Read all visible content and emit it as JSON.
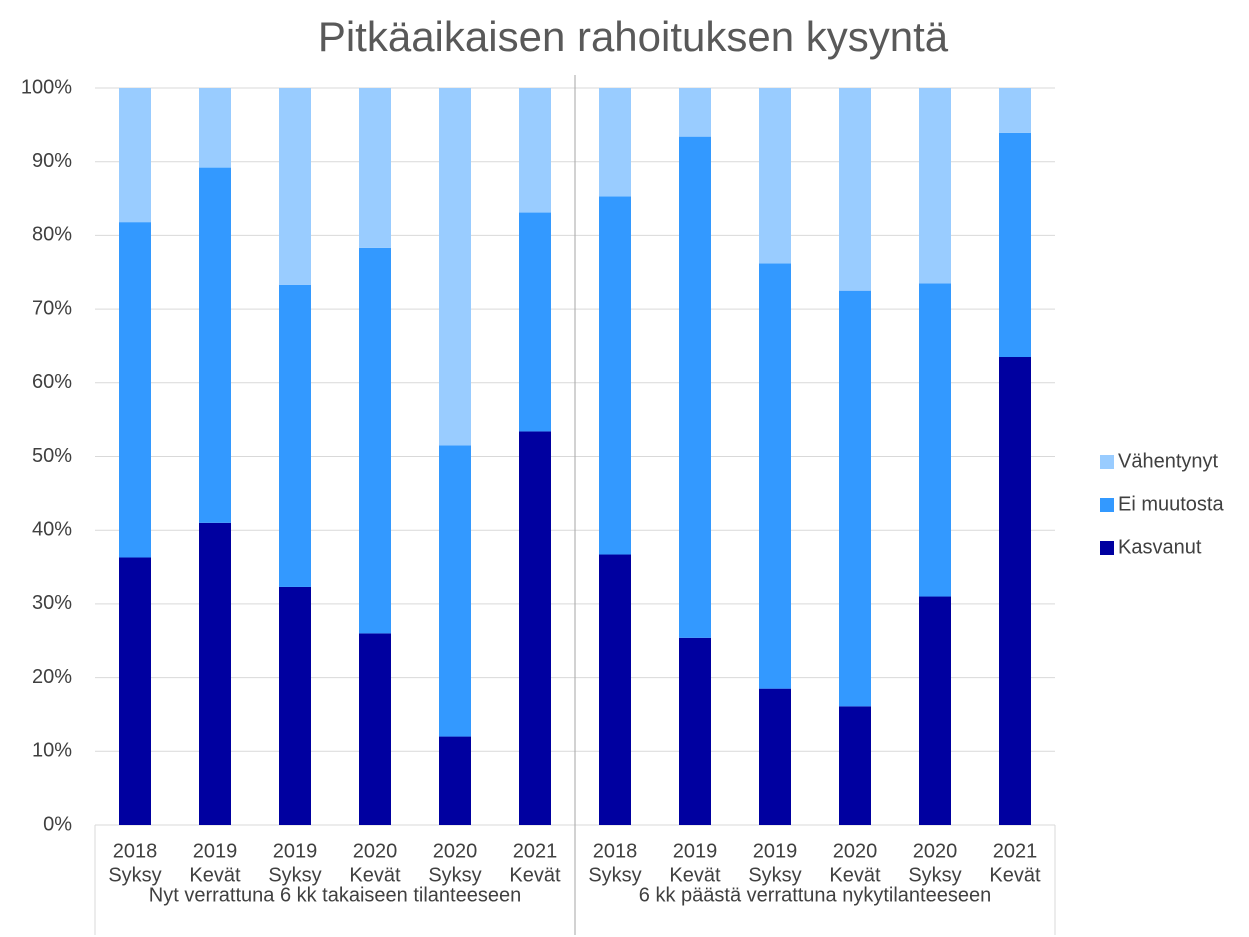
{
  "chart_data": {
    "type": "stacked_bar",
    "title": "Pitkäaikaisen rahoituksen kysyntä",
    "categories": [
      [
        "2018",
        "Syksy"
      ],
      [
        "2019",
        "Kevät"
      ],
      [
        "2019",
        "Syksy"
      ],
      [
        "2020",
        "Kevät"
      ],
      [
        "2020",
        "Syksy"
      ],
      [
        "2021",
        "Kevät"
      ],
      [
        "2018",
        "Syksy"
      ],
      [
        "2019",
        "Kevät"
      ],
      [
        "2019",
        "Syksy"
      ],
      [
        "2020",
        "Kevät"
      ],
      [
        "2020",
        "Syksy"
      ],
      [
        "2021",
        "Kevät"
      ]
    ],
    "groups": [
      "Nyt verrattuna 6 kk takaiseen tilanteeseen",
      "6 kk päästä verrattuna nykytilanteeseen"
    ],
    "series": [
      {
        "name": "Kasvanut",
        "color": "#0000a0",
        "values": [
          36.3,
          41.0,
          32.3,
          26.0,
          12.0,
          53.4,
          36.7,
          25.4,
          18.5,
          16.1,
          31.0,
          63.5
        ]
      },
      {
        "name": "Ei muutosta",
        "color": "#3399ff",
        "values": [
          45.5,
          48.2,
          41.0,
          52.3,
          39.5,
          29.7,
          48.6,
          68.0,
          57.7,
          56.4,
          42.5,
          30.4
        ]
      },
      {
        "name": "Vähentynyt",
        "color": "#99ccff",
        "values": [
          18.2,
          10.8,
          26.7,
          21.7,
          48.5,
          16.9,
          14.7,
          6.6,
          23.8,
          27.5,
          26.5,
          6.1
        ]
      }
    ],
    "ylim": [
      0,
      100
    ],
    "yticks": [
      {
        "value": 0,
        "label": "0%"
      },
      {
        "value": 10,
        "label": "10%"
      },
      {
        "value": 20,
        "label": "20%"
      },
      {
        "value": 30,
        "label": "30%"
      },
      {
        "value": 40,
        "label": "40%"
      },
      {
        "value": 50,
        "label": "50%"
      },
      {
        "value": 60,
        "label": "60%"
      },
      {
        "value": 70,
        "label": "70%"
      },
      {
        "value": 80,
        "label": "80%"
      },
      {
        "value": 90,
        "label": "90%"
      },
      {
        "value": 100,
        "label": "100%"
      }
    ],
    "grid": true,
    "legend": "right"
  }
}
